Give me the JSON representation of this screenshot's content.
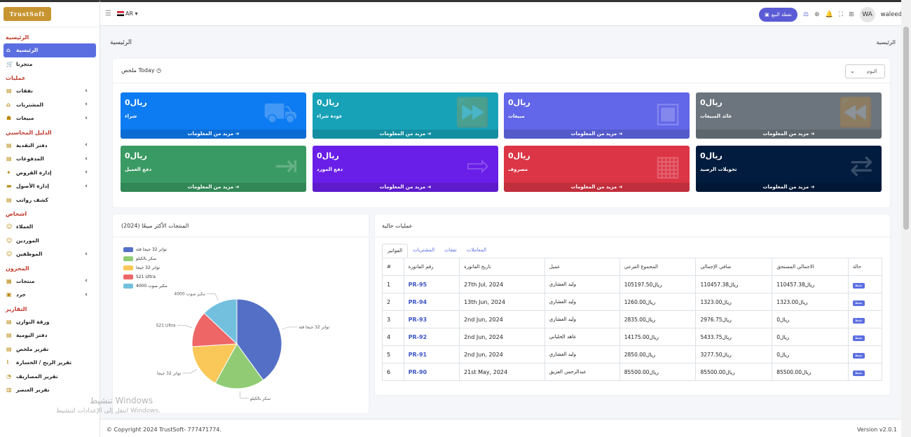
{
  "sidebar": {
    "logo": "TrustSoft",
    "sections": [
      {
        "head": "الرئيسية",
        "items": [
          {
            "label": "الرئيسية",
            "icon": "home-icon",
            "glyph": "⌂",
            "active": true,
            "chev": false
          },
          {
            "label": "متجرنا",
            "icon": "cart-icon",
            "glyph": "🛒",
            "active": false,
            "chev": false
          }
        ]
      },
      {
        "head": "عمليات",
        "items": [
          {
            "label": "نفقات",
            "icon": "wallet-icon",
            "glyph": "▤",
            "chev": true
          },
          {
            "label": "المشتريات",
            "icon": "basket-icon",
            "glyph": "⌂",
            "chev": true
          },
          {
            "label": "مبيعات",
            "icon": "bag-icon",
            "glyph": "☗",
            "chev": true
          }
        ]
      },
      {
        "head": "الدليل المحاسبي",
        "items": [
          {
            "label": "دفتر النقدية",
            "icon": "book-icon",
            "glyph": "▤",
            "chev": true
          },
          {
            "label": "المدفوعات",
            "icon": "payments-icon",
            "glyph": "▤",
            "chev": true
          },
          {
            "label": "إدارة القروض",
            "icon": "loan-icon",
            "glyph": "✦",
            "chev": true
          },
          {
            "label": "إدارة الأصول",
            "icon": "assets-icon",
            "glyph": "▬",
            "chev": true
          },
          {
            "label": "كشف رواتب",
            "icon": "payroll-icon",
            "glyph": "▤",
            "chev": false
          }
        ]
      },
      {
        "head": "اشخاص",
        "items": [
          {
            "label": "العملاء",
            "icon": "customers-icon",
            "glyph": "☺",
            "chev": false
          },
          {
            "label": "الموردين",
            "icon": "suppliers-icon",
            "glyph": "☺",
            "chev": false
          },
          {
            "label": "الموظفين",
            "icon": "employees-icon",
            "glyph": "☺",
            "chev": true
          }
        ]
      },
      {
        "head": "المخزون",
        "items": [
          {
            "label": "منتجات",
            "icon": "products-icon",
            "glyph": "▦",
            "chev": true
          },
          {
            "label": "جرد",
            "icon": "inventory-icon",
            "glyph": "▣",
            "chev": true
          }
        ]
      },
      {
        "head": "التقارير",
        "items": [
          {
            "label": "ورقة التوازن",
            "icon": "report-icon",
            "glyph": "▤",
            "chev": false
          },
          {
            "label": "دفتر اليومية",
            "icon": "journal-icon",
            "glyph": "▤",
            "chev": false
          },
          {
            "label": "تقرير ملخص",
            "icon": "summary-report-icon",
            "glyph": "▤",
            "chev": false
          },
          {
            "label": "تقرير الربح / الخسارة",
            "icon": "pl-report-icon",
            "glyph": "⌇",
            "chev": false
          },
          {
            "label": "تقرير المصاريف",
            "icon": "expense-report-icon",
            "glyph": "◔",
            "chev": false
          },
          {
            "label": "تقرير العنصر",
            "icon": "item-report-icon",
            "glyph": "▥",
            "chev": false
          }
        ]
      }
    ]
  },
  "topbar": {
    "lang": "AR ▾",
    "pos_button": "نقطة البيع",
    "avatar": "WA",
    "username": "waleed ▾"
  },
  "page": {
    "title_left": "الرئيسية",
    "title_right": "الرئيسية"
  },
  "summary": {
    "title": "ملخص Today ◷",
    "select": "اليوم",
    "boxes": [
      {
        "value": "ريال0",
        "label": "شراء",
        "footer": "مزيد من المعلومات ➜",
        "color": "#0d7bf2",
        "icon": "truck-icon",
        "glyph": "⛟"
      },
      {
        "value": "ريال0",
        "label": "عودة شراء",
        "footer": "مزيد من المعلومات ➜",
        "color": "#17a2b8",
        "icon": "forward-icon",
        "glyph": "⏩"
      },
      {
        "value": "ريال0",
        "label": "مبيعات",
        "footer": "مزيد من المعلومات ➜",
        "color": "#6167e8",
        "icon": "shopping-bag-icon",
        "glyph": "▣"
      },
      {
        "value": "ريال0",
        "label": "عائد المبيعات",
        "footer": "مزيد من المعلومات ➜",
        "color": "#6c757d",
        "icon": "rewind-icon",
        "glyph": "⏪"
      },
      {
        "value": "ريال0",
        "label": "دفع العميل",
        "footer": "مزيد من المعلومات ➜",
        "color": "#3a9a63",
        "icon": "sign-in-icon",
        "glyph": "⇥"
      },
      {
        "value": "ريال0",
        "label": "دفع المورد",
        "footer": "مزيد من المعلومات ➜",
        "color": "#6a1fe8",
        "icon": "sign-out-icon",
        "glyph": "⇨"
      },
      {
        "value": "ريال0",
        "label": "مصروف",
        "footer": "مزيد من المعلومات ➜",
        "color": "#dc3545",
        "icon": "calculator-icon",
        "glyph": "▦"
      },
      {
        "value": "ريال0",
        "label": "تحويلات الرصيد",
        "footer": "مزيد من المعلومات ➜",
        "color": "#011c3e",
        "icon": "exchange-icon",
        "glyph": "⇄"
      }
    ]
  },
  "top_products": {
    "title": "المنتجات الأكثر مبيعًا (2024)",
    "legend": [
      "تواتر 32 جيجا فئة",
      "سكر بالكيلو",
      "تواتر 32 جيجا",
      "S21 Ultra",
      "مكبر صوت 4000"
    ]
  },
  "chart_data": {
    "type": "pie",
    "title": "المنتجات الأكثر مبيعًا (2024)",
    "categories": [
      "تواتر 32 جيجا فئة",
      "سكر بالكيلو",
      "تواتر 32 جيجا",
      "S21 Ultra",
      "مكبر صوت 4000"
    ],
    "values": [
      40,
      18,
      16,
      13,
      13
    ],
    "colors": [
      "#5470c6",
      "#91cc75",
      "#fac858",
      "#ee6666",
      "#73c0de"
    ],
    "legend": "top-left"
  },
  "transactions": {
    "title": "عمليات حالية",
    "tabs": [
      "الفواتير",
      "المشتريات",
      "نفقات",
      "المعاملات"
    ],
    "headers": [
      "#",
      "رقم الفاتورة",
      "تاريخ الفاتورة",
      "عميل",
      "المجموع الفرعي",
      "صافي الإجمالي",
      "الاجمالي المستحق",
      "حالة"
    ],
    "rows": [
      [
        "1",
        "PR-95",
        "27th Jul, 2024",
        "وليد العشاري",
        "ريال105197.50",
        "ريال110457.38",
        "ريال110457.38",
        "نشط"
      ],
      [
        "2",
        "PR-94",
        "13th Jun, 2024",
        "وليد العشاري",
        "ريال1260.00",
        "ريال1323.00",
        "ريال1323.00",
        "نشط"
      ],
      [
        "3",
        "PR-93",
        "2nd Jun, 2024",
        "وليد العشاري",
        "ريال2835.00",
        "ريال2976.75",
        "ريال0",
        "نشط"
      ],
      [
        "4",
        "PR-92",
        "2nd Jun, 2024",
        "عاهد الحلباني",
        "ريال14175.00",
        "ريال5433.75",
        "ريال0",
        "نشط"
      ],
      [
        "5",
        "PR-91",
        "2nd Jun, 2024",
        "وليد العشاري",
        "ريال2850.00",
        "ريال3277.50",
        "ريال0",
        "نشط"
      ],
      [
        "6",
        "PR-90",
        "21st May, 2024",
        "عبدالرحمن العزيق",
        "ريال85500.00",
        "ريال85500.00",
        "ريال85500.00",
        "نشط"
      ]
    ]
  },
  "footer": {
    "copyright": "© Copyright 2024 TrustSoft- 777471774.",
    "version": "Version v2.0.1"
  },
  "watermark": {
    "line1": "تنشيط Windows",
    "line2": "انتقل إلى الإعدادات لتنشيط Windows."
  }
}
